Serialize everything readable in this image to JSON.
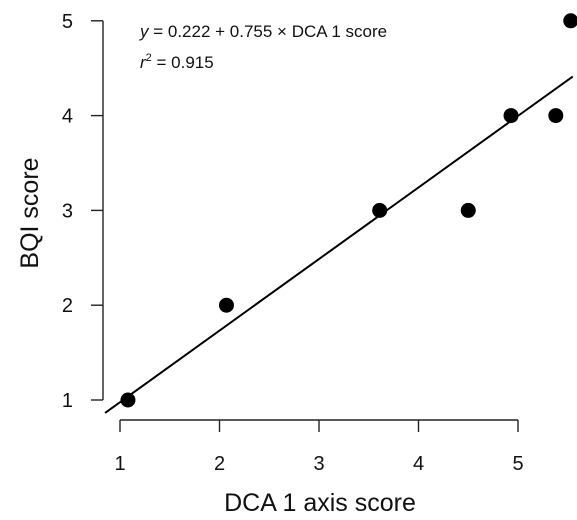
{
  "chart_data": {
    "type": "scatter",
    "title": "",
    "xlabel": "DCA 1 axis score",
    "ylabel": "BQI  score",
    "xlim": [
      0.8,
      5.55
    ],
    "ylim": [
      0.85,
      5.05
    ],
    "xticks": [
      1,
      2,
      3,
      4,
      5
    ],
    "yticks": [
      1,
      2,
      3,
      4,
      5
    ],
    "x": [
      1.08,
      2.07,
      3.61,
      4.5,
      4.93,
      5.38,
      5.53
    ],
    "y": [
      1,
      2,
      3,
      3,
      4,
      4,
      5
    ],
    "fit": {
      "intercept": 0.222,
      "slope": 0.755
    },
    "annotations": {
      "equation": {
        "y": "y",
        "rhs": " = 0.222 + 0.755 × DCA 1 score"
      },
      "r2": {
        "r": "r",
        "sup": "2",
        "value": " = 0.915"
      }
    },
    "grid": false,
    "legend": "none"
  }
}
